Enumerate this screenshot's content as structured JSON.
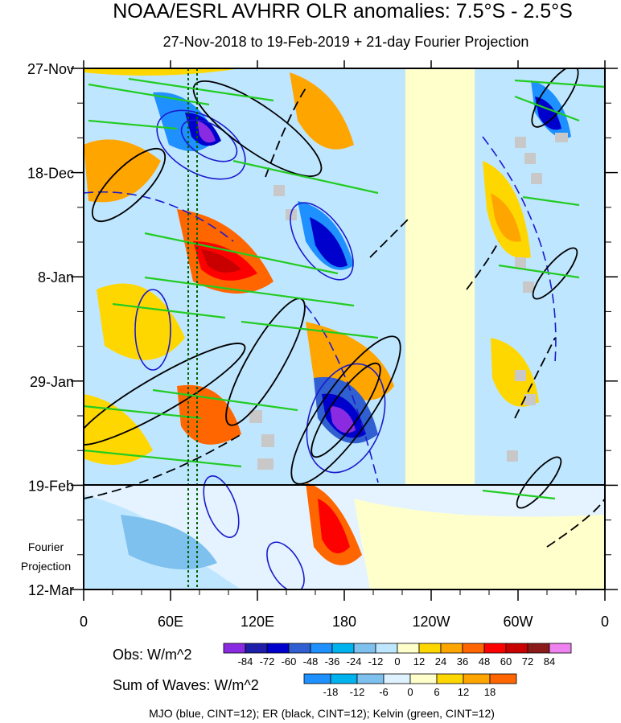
{
  "chart_data": {
    "type": "heatmap",
    "title": "NOAA/ESRL AVHRR OLR anomalies: 7.5°S - 2.5°S",
    "subtitle": "27-Nov-2018 to 19-Feb-2019 + 21-day Fourier Projection",
    "x_tick_labels": [
      "0",
      "60E",
      "120E",
      "180",
      "120W",
      "60W",
      "0"
    ],
    "y_tick_labels": [
      "27-Nov",
      "18-Dec",
      "8-Jan",
      "29-Jan",
      "19-Feb",
      "12-Mar"
    ],
    "projection_label_line1": "Fourier",
    "projection_label_line2": "Projection",
    "projection_start": "19-Feb",
    "obs_legend": {
      "label": "Obs: W/m^2",
      "levels": [
        "-84",
        "-72",
        "-60",
        "-48",
        "-36",
        "-24",
        "-12",
        "0",
        "12",
        "24",
        "36",
        "48",
        "60",
        "72",
        "84"
      ],
      "colors": [
        "#8a2be2",
        "#1e1ea8",
        "#0000cd",
        "#2f5fd0",
        "#1e90ff",
        "#00b2ee",
        "#7ec0ee",
        "#bfe6ff",
        "#ffffcc",
        "#ffd700",
        "#ffa500",
        "#ff6600",
        "#ff0000",
        "#c80000",
        "#8b1a1a",
        "#ee82ee"
      ]
    },
    "waves_legend": {
      "label": "Sum of Waves: W/m^2",
      "levels": [
        "-18",
        "-12",
        "-6",
        "0",
        "6",
        "12",
        "18"
      ],
      "colors": [
        "#1e90ff",
        "#00b2ee",
        "#7ec0ee",
        "#dff2ff",
        "#ffffcc",
        "#ffd700",
        "#ffa500",
        "#ff6600"
      ]
    },
    "footer": "MJO (blue, CINT=12); ER (black, CINT=12); Kelvin (green, CINT=12)",
    "series_contours": [
      {
        "name": "MJO",
        "color": "#1a1acd"
      },
      {
        "name": "ER",
        "color": "#000000"
      },
      {
        "name": "Kelvin",
        "color": "#22cc22"
      }
    ]
  }
}
